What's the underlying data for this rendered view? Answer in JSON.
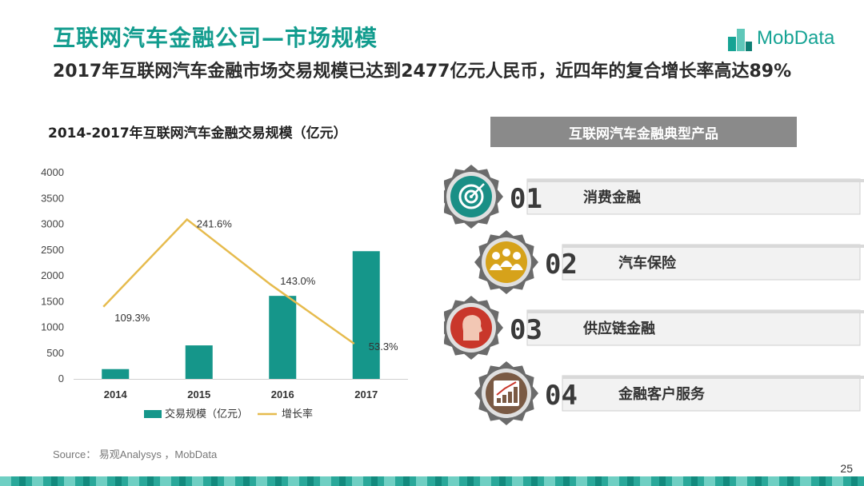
{
  "page": {
    "title": "互联网汽车金融公司—市场规模",
    "subtitle": "2017年互联网汽车金融市场交易规模已达到2477亿元人民币，近四年的复合增长率高达89%",
    "source": "Source： 易观Analysys ，MobData",
    "page_number": "25"
  },
  "logo": {
    "text": "MobData"
  },
  "colors": {
    "brand": "#129c8e",
    "bar": "#15968a",
    "line": "#e6bb4d",
    "icon_teal": "#1a8f86",
    "icon_gold": "#d6a21a",
    "icon_red": "#c9372b",
    "icon_brown": "#7a5a44"
  },
  "chart_data": {
    "type": "bar",
    "title": "2014-2017年互联网汽车金融交易规模（亿元）",
    "categories": [
      "2014",
      "2015",
      "2016",
      "2017"
    ],
    "series": [
      {
        "name": "交易规模（亿元）",
        "type": "bar",
        "values": [
          190,
          650,
          1610,
          2477
        ]
      },
      {
        "name": "增长率",
        "type": "line",
        "values": [
          109.3,
          241.6,
          143.0,
          53.3
        ],
        "labels": [
          "109.3%",
          "241.6%",
          "143.0%",
          "53.3%"
        ]
      }
    ],
    "ylim": [
      0,
      4000
    ],
    "yticks": [
      0,
      500,
      1000,
      1500,
      2000,
      2500,
      3000,
      3500,
      4000
    ],
    "legend_position": "bottom",
    "grid": false
  },
  "products": {
    "header": "互联网汽车金融典型产品",
    "items": [
      {
        "number": "01",
        "label": "消费金融",
        "icon": "target-icon",
        "color": "#1a8f86"
      },
      {
        "number": "02",
        "label": "汽车保险",
        "icon": "people-group-icon",
        "color": "#d6a21a"
      },
      {
        "number": "03",
        "label": "供应链金融",
        "icon": "person-head-icon",
        "color": "#c9372b"
      },
      {
        "number": "04",
        "label": "金融客户服务",
        "icon": "growth-chart-icon",
        "color": "#7a5a44"
      }
    ]
  }
}
